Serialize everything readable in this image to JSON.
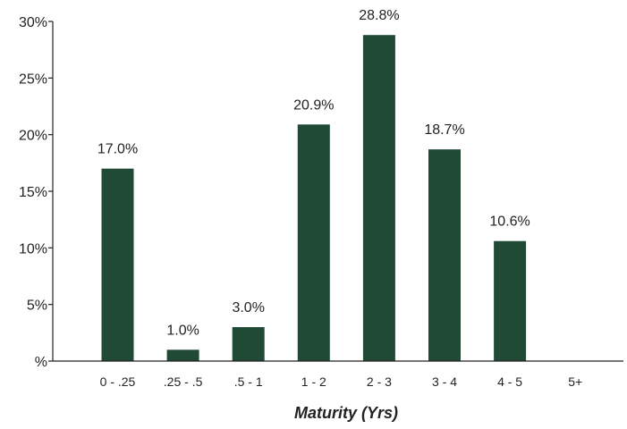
{
  "chart_data": {
    "type": "bar",
    "title": "",
    "xlabel": "Maturity (Yrs)",
    "ylabel": "",
    "categories": [
      "0 - .25",
      ".25 - .5",
      ".5 - 1",
      "1 - 2",
      "2 - 3",
      "3 - 4",
      "4 - 5",
      "5+"
    ],
    "values": [
      17.0,
      1.0,
      3.0,
      20.9,
      28.8,
      18.7,
      10.6,
      0
    ],
    "data_labels": [
      "17.0%",
      "1.0%",
      "3.0%",
      "20.9%",
      "28.8%",
      "18.7%",
      "10.6%",
      ""
    ],
    "ylim": [
      0,
      30
    ],
    "yticks": [
      0,
      5,
      10,
      15,
      20,
      25,
      30
    ],
    "ytick_labels": [
      "%",
      "5%",
      "10%",
      "15%",
      "20%",
      "25%",
      "30%"
    ],
    "grid": false,
    "legend": "none",
    "bar_color": "#214a36",
    "text_color": "#222222"
  }
}
